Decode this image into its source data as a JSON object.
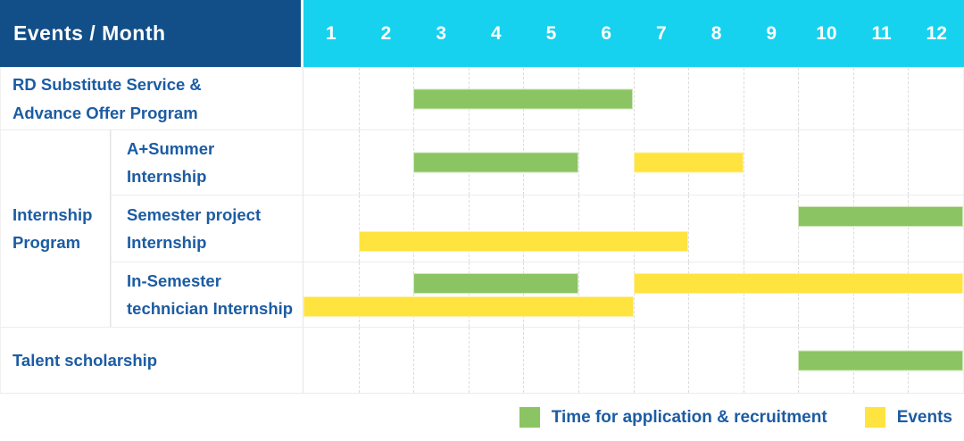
{
  "chart_data": {
    "type": "gantt",
    "title_cell": "Events / Month",
    "months": [
      "1",
      "2",
      "3",
      "4",
      "5",
      "6",
      "7",
      "8",
      "9",
      "10",
      "11",
      "12"
    ],
    "x_range": [
      1,
      12
    ],
    "grid": "dashed-vertical",
    "legend_position": "bottom-right",
    "colors": {
      "header_blue": "#124E87",
      "header_cyan": "#16D2EE",
      "label_blue": "#1C5CA3",
      "application": "#8BC462",
      "application_edge": "#cfe7b8",
      "events": "#FFE33E",
      "events_edge": "#fff0a8"
    },
    "group_label": {
      "label": "Internship Program",
      "label_lines": [
        "Internship",
        "Program"
      ],
      "member_rows": [
        1,
        2,
        3
      ]
    },
    "rows": [
      {
        "id": "rd-substitute-service",
        "label": "RD Substitute Service & Advance Offer Program",
        "label_lines": [
          "RD Substitute Service &",
          "Advance Offer Program"
        ],
        "bars": [
          {
            "type": "application",
            "start_month": 3,
            "end_month": 6,
            "band": "middle"
          }
        ]
      },
      {
        "id": "a-plus-summer-internship",
        "label": "A+Summer Internship",
        "label_lines": [
          "A+Summer",
          "Internship"
        ],
        "bars": [
          {
            "type": "application",
            "start_month": 3,
            "end_month": 5,
            "band": "middle"
          },
          {
            "type": "events",
            "start_month": 7,
            "end_month": 8,
            "band": "middle"
          }
        ]
      },
      {
        "id": "semester-project-internship",
        "label": "Semester project Internship",
        "label_lines": [
          "Semester project",
          "Internship"
        ],
        "bars": [
          {
            "type": "application",
            "start_month": 10,
            "end_month": 12,
            "band": "top"
          },
          {
            "type": "events",
            "start_month": 2,
            "end_month": 7,
            "band": "bottom"
          }
        ]
      },
      {
        "id": "in-semester-technician-internship",
        "label": "In-Semester technician Internship",
        "label_lines": [
          "In-Semester",
          "technician Internship"
        ],
        "bars": [
          {
            "type": "application",
            "start_month": 3,
            "end_month": 5,
            "band": "top"
          },
          {
            "type": "events",
            "start_month": 7,
            "end_month": 12,
            "band": "top"
          },
          {
            "type": "events",
            "start_month": 1,
            "end_month": 6,
            "band": "bottom"
          }
        ]
      },
      {
        "id": "talent-scholarship",
        "label": "Talent scholarship",
        "label_lines": [
          "Talent scholarship"
        ],
        "bars": [
          {
            "type": "application",
            "start_month": 10,
            "end_month": 12,
            "band": "middle"
          }
        ]
      }
    ],
    "legend": [
      {
        "key": "application",
        "label": "Time for application & recruitment"
      },
      {
        "key": "events",
        "label": "Events"
      }
    ]
  }
}
